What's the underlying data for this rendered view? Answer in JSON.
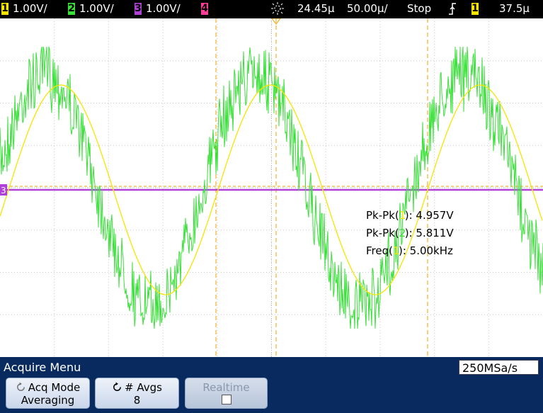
{
  "status_bar": {
    "channels": [
      {
        "num": "1",
        "scale": "1.00V/",
        "color": "#f7e400"
      },
      {
        "num": "2",
        "scale": "1.00V/",
        "color": "#38e038"
      },
      {
        "num": "3",
        "scale": "1.00V/",
        "color": "#b040d8"
      },
      {
        "num": "4",
        "scale": "",
        "color": "#ff3e9a"
      }
    ],
    "delay": "24.45µ",
    "timebase": "50.00µ/",
    "run_state": "Stop",
    "trigger_source": "1",
    "trigger_level": "37.5µ"
  },
  "measurements": [
    {
      "label": "Pk-Pk(",
      "source": "1",
      "value": "): 4.957V"
    },
    {
      "label": "Pk-Pk(",
      "source": "2",
      "value": "): 5.811V"
    },
    {
      "label": "Freq(",
      "source": "1",
      "value": "): 5.00kHz"
    }
  ],
  "ground_marker_label": "3",
  "acquire_menu": {
    "title": "Acquire Menu",
    "sample_rate": "250MSa/s",
    "softkeys": [
      {
        "label": "Acq Mode",
        "value": "Averaging",
        "enabled": true
      },
      {
        "label": "# Avgs",
        "value": "8",
        "enabled": true
      },
      {
        "label": "Realtime",
        "value": "",
        "enabled": false
      }
    ]
  },
  "colors": {
    "ch1": "#f7e400",
    "ch2": "#38e038",
    "ch3": "#b040d8",
    "ch4": "#ff3e9a",
    "grid": "#c8c8c8",
    "marker": "#f0a000",
    "menu_bg": "#092a5e"
  }
}
